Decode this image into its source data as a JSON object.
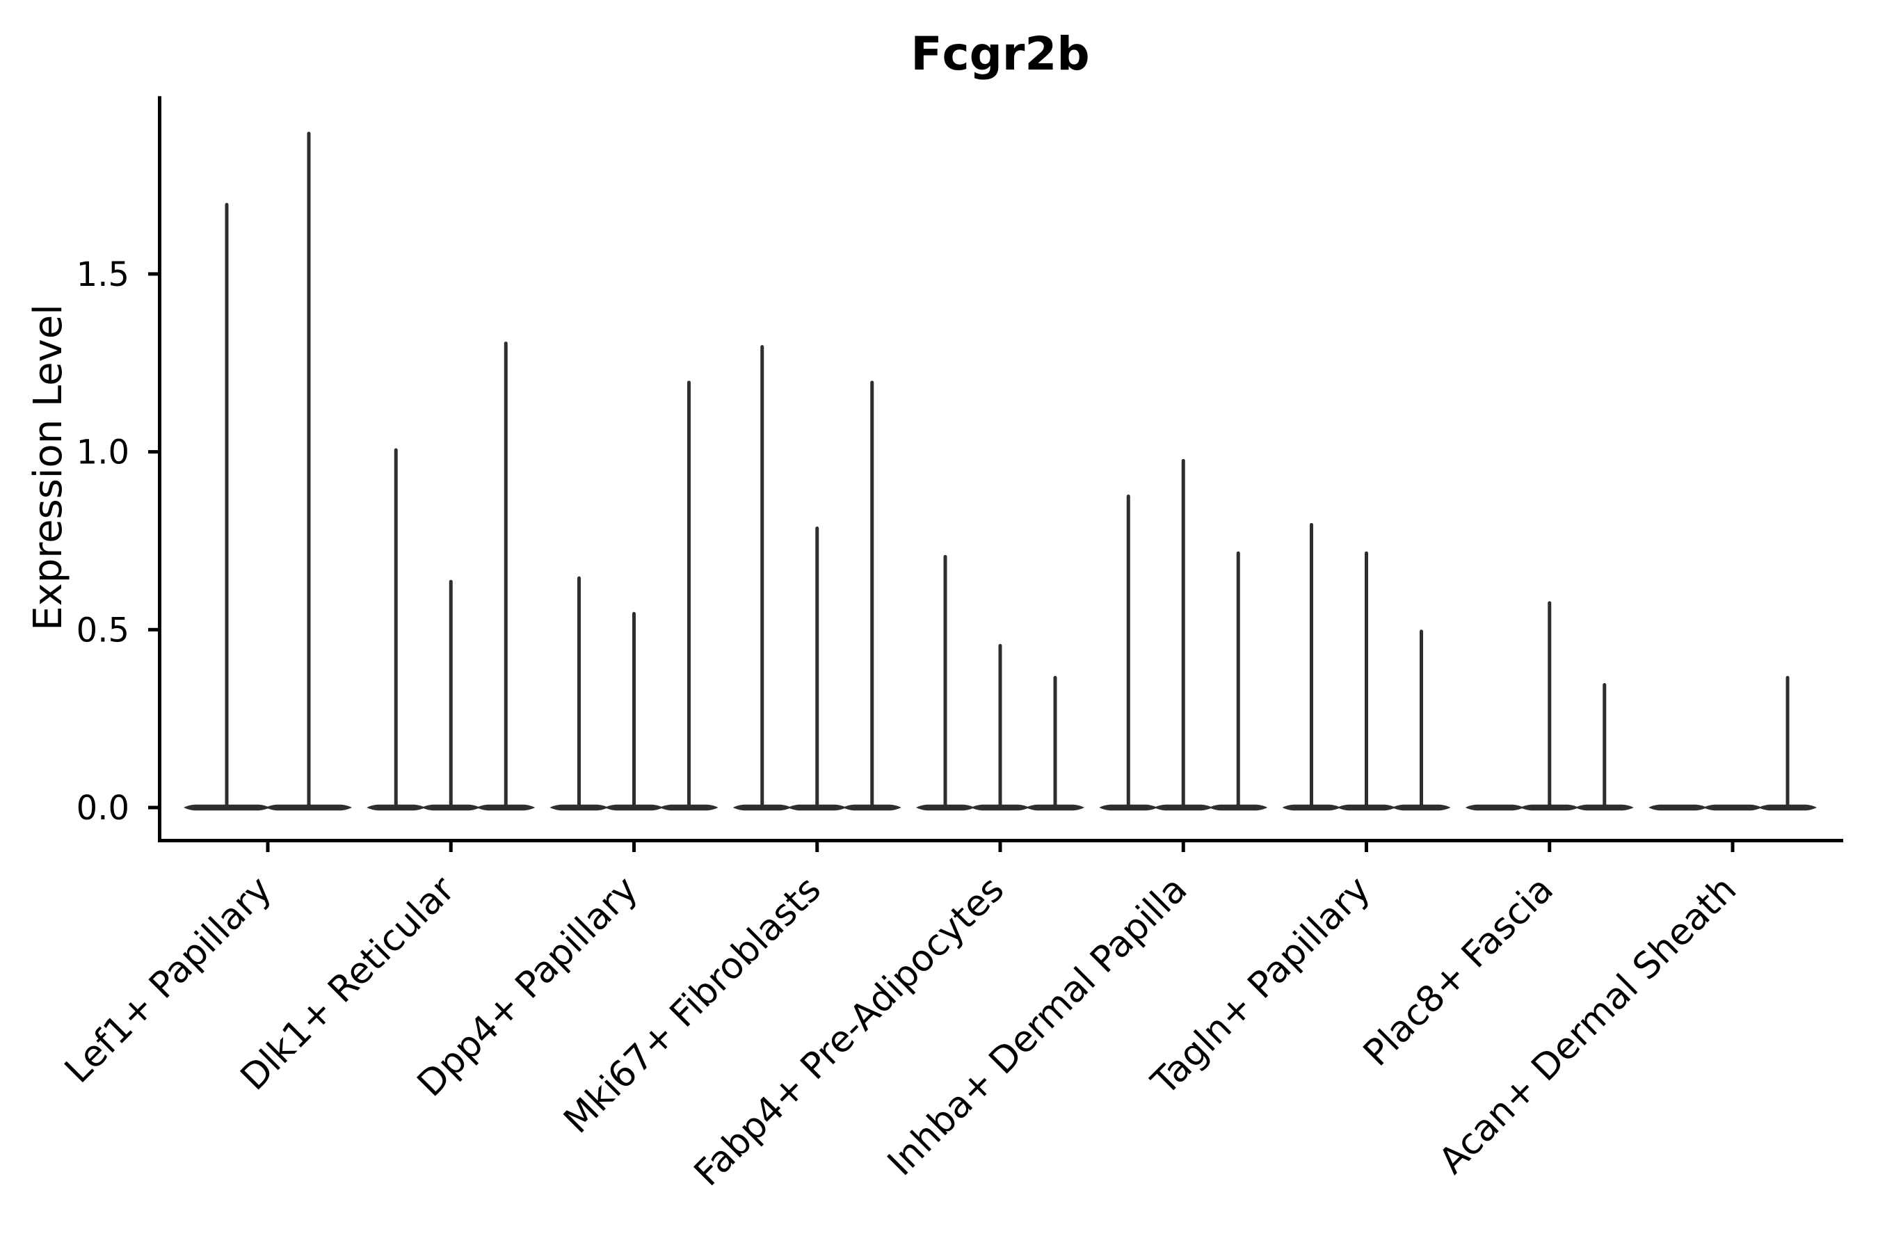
{
  "figure": {
    "title": "Fcgr2b",
    "y_axis_label": "Expression Level"
  },
  "chart_data": {
    "type": "violin",
    "title": "Fcgr2b",
    "xlabel": "",
    "ylabel": "Expression Level",
    "ylim": [
      0,
      2.0
    ],
    "yticks": [
      "0.0",
      "0.5",
      "1.0",
      "1.5"
    ],
    "ytick_values": [
      0.0,
      0.5,
      1.0,
      1.5
    ],
    "grid": false,
    "legend": false,
    "x_tick_label_rotation_deg": 45,
    "categories": [
      "Lef1+ Papillary",
      "Dlk1+ Reticular",
      "Dpp4+ Papillary",
      "Mki67+ Fibroblasts",
      "Fabp4+ Pre-Adipocytes",
      "Inhba+ Dermal Papilla",
      "Tagln+ Papillary",
      "Plac8+ Fascia",
      "Acan+ Dermal Sheath"
    ],
    "series": [
      {
        "category": "Lef1+ Papillary",
        "violin_max_expression": [
          1.7,
          1.9
        ]
      },
      {
        "category": "Dlk1+ Reticular",
        "violin_max_expression": [
          1.01,
          0.64,
          1.31
        ]
      },
      {
        "category": "Dpp4+ Papillary",
        "violin_max_expression": [
          0.65,
          0.55,
          1.2
        ]
      },
      {
        "category": "Mki67+ Fibroblasts",
        "violin_max_expression": [
          1.3,
          0.79,
          1.2
        ]
      },
      {
        "category": "Fabp4+ Pre-Adipocytes",
        "violin_max_expression": [
          0.71,
          0.46,
          0.37
        ]
      },
      {
        "category": "Inhba+ Dermal Papilla",
        "violin_max_expression": [
          0.88,
          0.98,
          0.72
        ]
      },
      {
        "category": "Tagln+ Papillary",
        "violin_max_expression": [
          0.8,
          0.72,
          0.5
        ]
      },
      {
        "category": "Plac8+ Fascia",
        "violin_max_expression": [
          0.0,
          0.58,
          0.35
        ]
      },
      {
        "category": "Acan+ Dermal Sheath",
        "violin_max_expression": [
          0.0,
          0.0,
          0.37
        ]
      }
    ],
    "shape": "zero-inflated violins: wide flat density lens at 0 with a thin spike up to the max expression value; violins with max 0 are flat bars only"
  },
  "colors": {
    "violin": "#2e2e2e",
    "axis": "#000000",
    "text": "#000000",
    "background": "#ffffff"
  }
}
